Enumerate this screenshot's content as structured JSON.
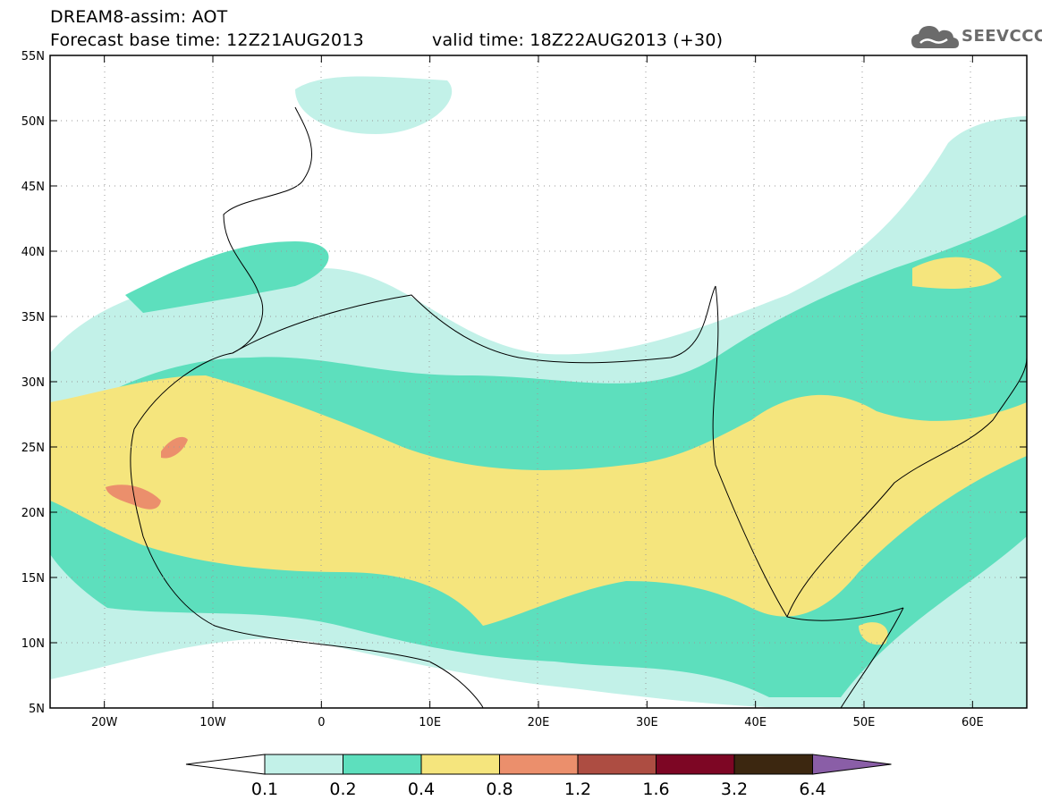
{
  "header": {
    "line1": "DREAM8-assim: AOT",
    "forecast_base": "Forecast base time: 12Z21AUG2013",
    "valid_time": "valid time: 18Z22AUG2013 (+30)"
  },
  "logo": {
    "icon": "cloud-logo-icon",
    "text": "SEEVCCC",
    "color": "#6b6b6b"
  },
  "map": {
    "lat_labels": [
      "55N",
      "50N",
      "45N",
      "40N",
      "35N",
      "30N",
      "25N",
      "20N",
      "15N",
      "10N",
      "5N"
    ],
    "lon_labels": [
      "20W",
      "10W",
      "0",
      "10E",
      "20E",
      "30E",
      "40E",
      "50E",
      "60E"
    ],
    "lat_range": [
      5,
      55
    ],
    "lon_range": [
      -25,
      65
    ],
    "grid": "dotted"
  },
  "colorbar": {
    "levels": [
      "0.1",
      "0.2",
      "0.4",
      "0.8",
      "1.2",
      "1.6",
      "3.2",
      "6.4"
    ],
    "colors": [
      "#ffffff",
      "#c2f1e8",
      "#5ddfbd",
      "#f5e57d",
      "#eb8f6c",
      "#ad4d42",
      "#7d0624",
      "#3c2710",
      "#8a5ea7"
    ]
  }
}
